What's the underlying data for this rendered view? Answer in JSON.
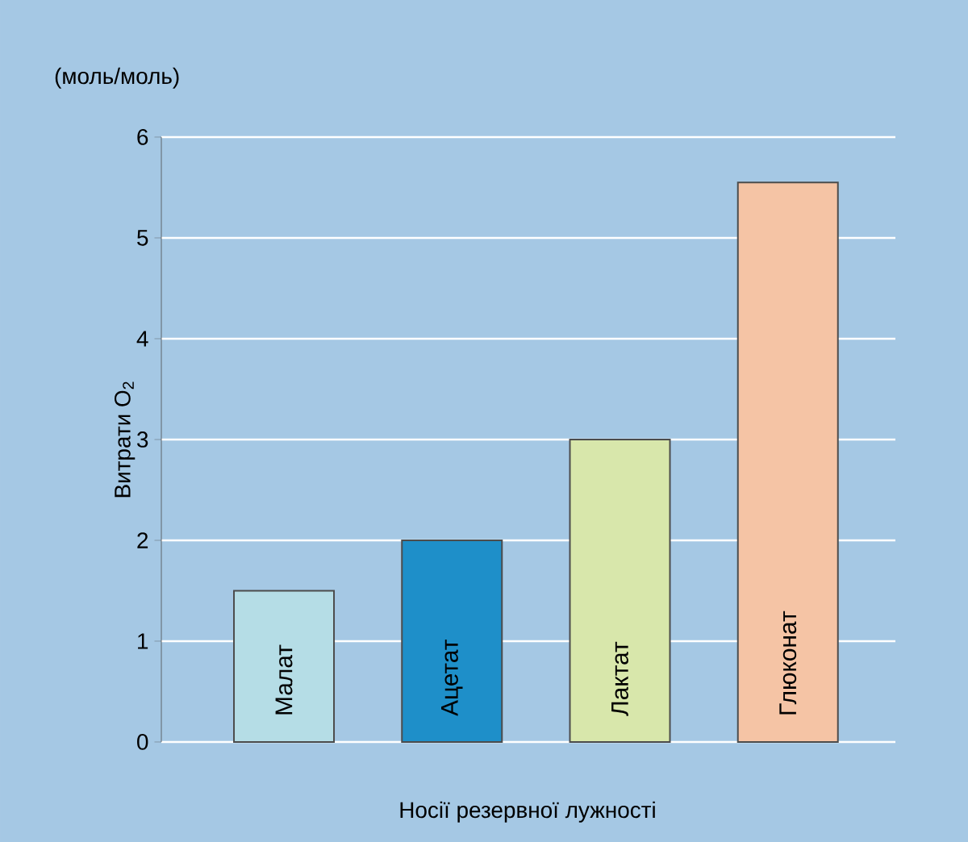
{
  "chart_data": {
    "type": "bar",
    "categories": [
      "Малат",
      "Ацетат",
      "Лактат",
      "Глюконат"
    ],
    "values": [
      1.5,
      2.0,
      3.0,
      5.55
    ],
    "colors": [
      "#b5dde6",
      "#1e8fc9",
      "#d8e7ab",
      "#f5c4a5"
    ],
    "ylim": [
      0,
      6
    ],
    "yticks": [
      0,
      1,
      2,
      3,
      4,
      5,
      6
    ],
    "ylabel": "Витрати O$_{2}$",
    "xlabel": "Носії резервної лужності",
    "annotations": [
      "(моль/моль)"
    ],
    "grid": "y"
  }
}
